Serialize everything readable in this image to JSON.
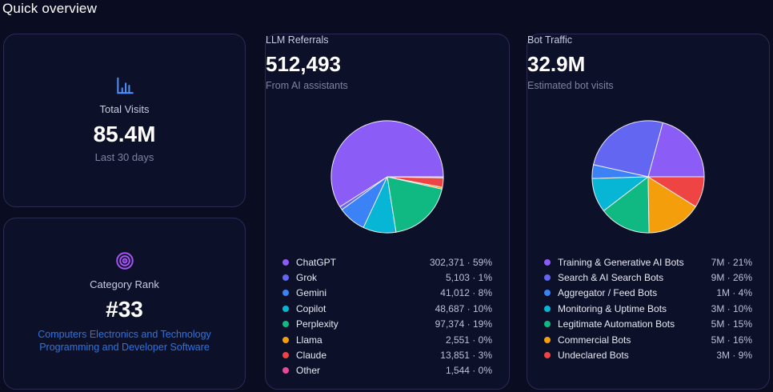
{
  "page": {
    "title": "Quick overview"
  },
  "colors": {
    "page_bg": "#0a0d21",
    "card_bg": "#0d1029",
    "card_border": "#2d2a52",
    "accent_blue": "#4d8ef7",
    "accent_purple": "#a855f7",
    "link_blue": "#2e74e0"
  },
  "legend_separator": " · ",
  "cards": {
    "total_visits": {
      "icon": "bar-chart-icon",
      "label": "Total Visits",
      "value": "85.4M",
      "subtitle": "Last 30 days"
    },
    "category_rank": {
      "icon": "target-icon",
      "label": "Category Rank",
      "value": "#33",
      "links": [
        "Computers Electronics and Technology",
        "Programming and Developer Software"
      ]
    }
  },
  "chart_data": [
    {
      "type": "pie",
      "title": "LLM Referrals",
      "total_label": "512,493",
      "subtitle": "From AI assistants",
      "start_angle": 0,
      "direction": "counterclockwise",
      "legend_position": "bottom",
      "series": [
        {
          "name": "ChatGPT",
          "value": 302371,
          "value_label": "302,371",
          "pct_label": "59%",
          "color": "#8b5cf6"
        },
        {
          "name": "Grok",
          "value": 5103,
          "value_label": "5,103",
          "pct_label": "1%",
          "color": "#6366f1"
        },
        {
          "name": "Gemini",
          "value": 41012,
          "value_label": "41,012",
          "pct_label": "8%",
          "color": "#3b82f6"
        },
        {
          "name": "Copilot",
          "value": 48687,
          "value_label": "48,687",
          "pct_label": "10%",
          "color": "#06b6d4"
        },
        {
          "name": "Perplexity",
          "value": 97374,
          "value_label": "97,374",
          "pct_label": "19%",
          "color": "#10b981"
        },
        {
          "name": "Llama",
          "value": 2551,
          "value_label": "2,551",
          "pct_label": "0%",
          "color": "#f59e0b"
        },
        {
          "name": "Claude",
          "value": 13851,
          "value_label": "13,851",
          "pct_label": "3%",
          "color": "#ef4444"
        },
        {
          "name": "Other",
          "value": 1544,
          "value_label": "1,544",
          "pct_label": "0%",
          "color": "#ec4899"
        }
      ]
    },
    {
      "type": "pie",
      "title": "Bot Traffic",
      "total_label": "32.9M",
      "subtitle": "Estimated bot visits",
      "start_angle": 0,
      "direction": "counterclockwise",
      "legend_position": "bottom",
      "series": [
        {
          "name": "Training & Generative AI Bots",
          "value": 21,
          "value_label": "7M",
          "pct_label": "21%",
          "color": "#8b5cf6"
        },
        {
          "name": "Search & AI Search Bots",
          "value": 26,
          "value_label": "9M",
          "pct_label": "26%",
          "color": "#6366f1"
        },
        {
          "name": "Aggregator / Feed Bots",
          "value": 4,
          "value_label": "1M",
          "pct_label": "4%",
          "color": "#3b82f6"
        },
        {
          "name": "Monitoring & Uptime Bots",
          "value": 10,
          "value_label": "3M",
          "pct_label": "10%",
          "color": "#06b6d4"
        },
        {
          "name": "Legitimate Automation Bots",
          "value": 15,
          "value_label": "5M",
          "pct_label": "15%",
          "color": "#10b981"
        },
        {
          "name": "Commercial Bots",
          "value": 16,
          "value_label": "5M",
          "pct_label": "16%",
          "color": "#f59e0b"
        },
        {
          "name": "Undeclared Bots",
          "value": 9,
          "value_label": "3M",
          "pct_label": "9%",
          "color": "#ef4444"
        }
      ]
    }
  ]
}
